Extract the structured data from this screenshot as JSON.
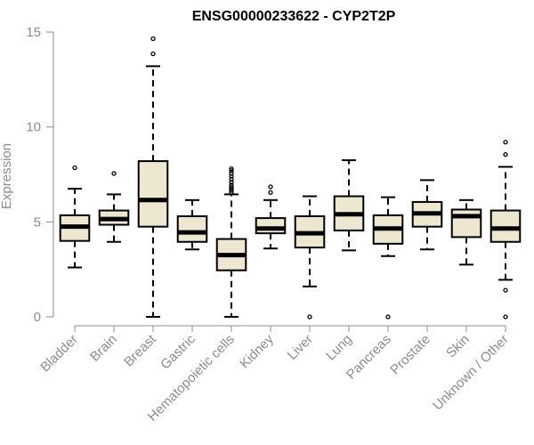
{
  "chart_data": {
    "type": "boxplot",
    "title": "ENSG00000233622 - CYP2T2P",
    "ylabel": "Expression",
    "xlabel": "",
    "ylim": [
      0,
      15
    ],
    "yticks": [
      0,
      5,
      10,
      15
    ],
    "box_fill": "#ede7d1",
    "box_stroke": "#000000",
    "axis_color": "#8c8c8c",
    "categories": [
      "Bladder",
      "Brain",
      "Breast",
      "Gastric",
      "Hematopoietic cells",
      "Kidney",
      "Liver",
      "Lung",
      "Pancreas",
      "Prostate",
      "Skin",
      "Unknown / Other"
    ],
    "boxes": [
      {
        "name": "Bladder",
        "q1": 4.0,
        "median": 4.75,
        "q3": 5.35,
        "whisker_low": 2.6,
        "whisker_high": 6.75,
        "outliers": [
          7.85
        ]
      },
      {
        "name": "Brain",
        "q1": 4.85,
        "median": 5.15,
        "q3": 5.6,
        "whisker_low": 3.95,
        "whisker_high": 6.45,
        "outliers": [
          7.55
        ]
      },
      {
        "name": "Breast",
        "q1": 4.75,
        "median": 6.15,
        "q3": 8.2,
        "whisker_low": 0.0,
        "whisker_high": 13.2,
        "outliers": [
          13.85,
          14.65
        ]
      },
      {
        "name": "Gastric",
        "q1": 3.95,
        "median": 4.45,
        "q3": 5.3,
        "whisker_low": 3.55,
        "whisker_high": 6.15,
        "outliers": []
      },
      {
        "name": "Hematopoietic cells",
        "q1": 2.45,
        "median": 3.25,
        "q3": 4.1,
        "whisker_low": 0.0,
        "whisker_high": 6.45,
        "outliers": [
          6.55,
          6.65,
          6.75,
          6.85,
          6.95,
          7.1,
          7.25,
          7.4,
          7.55,
          7.7,
          7.8
        ]
      },
      {
        "name": "Kidney",
        "q1": 4.4,
        "median": 4.65,
        "q3": 5.2,
        "whisker_low": 3.6,
        "whisker_high": 6.15,
        "outliers": [
          6.55,
          6.85
        ]
      },
      {
        "name": "Liver",
        "q1": 3.65,
        "median": 4.4,
        "q3": 5.3,
        "whisker_low": 1.6,
        "whisker_high": 6.35,
        "outliers": [
          0.0
        ]
      },
      {
        "name": "Lung",
        "q1": 4.55,
        "median": 5.4,
        "q3": 6.35,
        "whisker_low": 3.5,
        "whisker_high": 8.25,
        "outliers": []
      },
      {
        "name": "Pancreas",
        "q1": 3.85,
        "median": 4.65,
        "q3": 5.35,
        "whisker_low": 3.2,
        "whisker_high": 6.3,
        "outliers": [
          0.0
        ]
      },
      {
        "name": "Prostate",
        "q1": 4.75,
        "median": 5.45,
        "q3": 6.05,
        "whisker_low": 3.55,
        "whisker_high": 7.2,
        "outliers": []
      },
      {
        "name": "Skin",
        "q1": 4.2,
        "median": 5.3,
        "q3": 5.65,
        "whisker_low": 2.75,
        "whisker_high": 6.15,
        "outliers": []
      },
      {
        "name": "Unknown / Other",
        "q1": 3.95,
        "median": 4.65,
        "q3": 5.6,
        "whisker_low": 1.95,
        "whisker_high": 7.9,
        "outliers": [
          0.0,
          1.4,
          8.55,
          9.2
        ]
      }
    ]
  }
}
